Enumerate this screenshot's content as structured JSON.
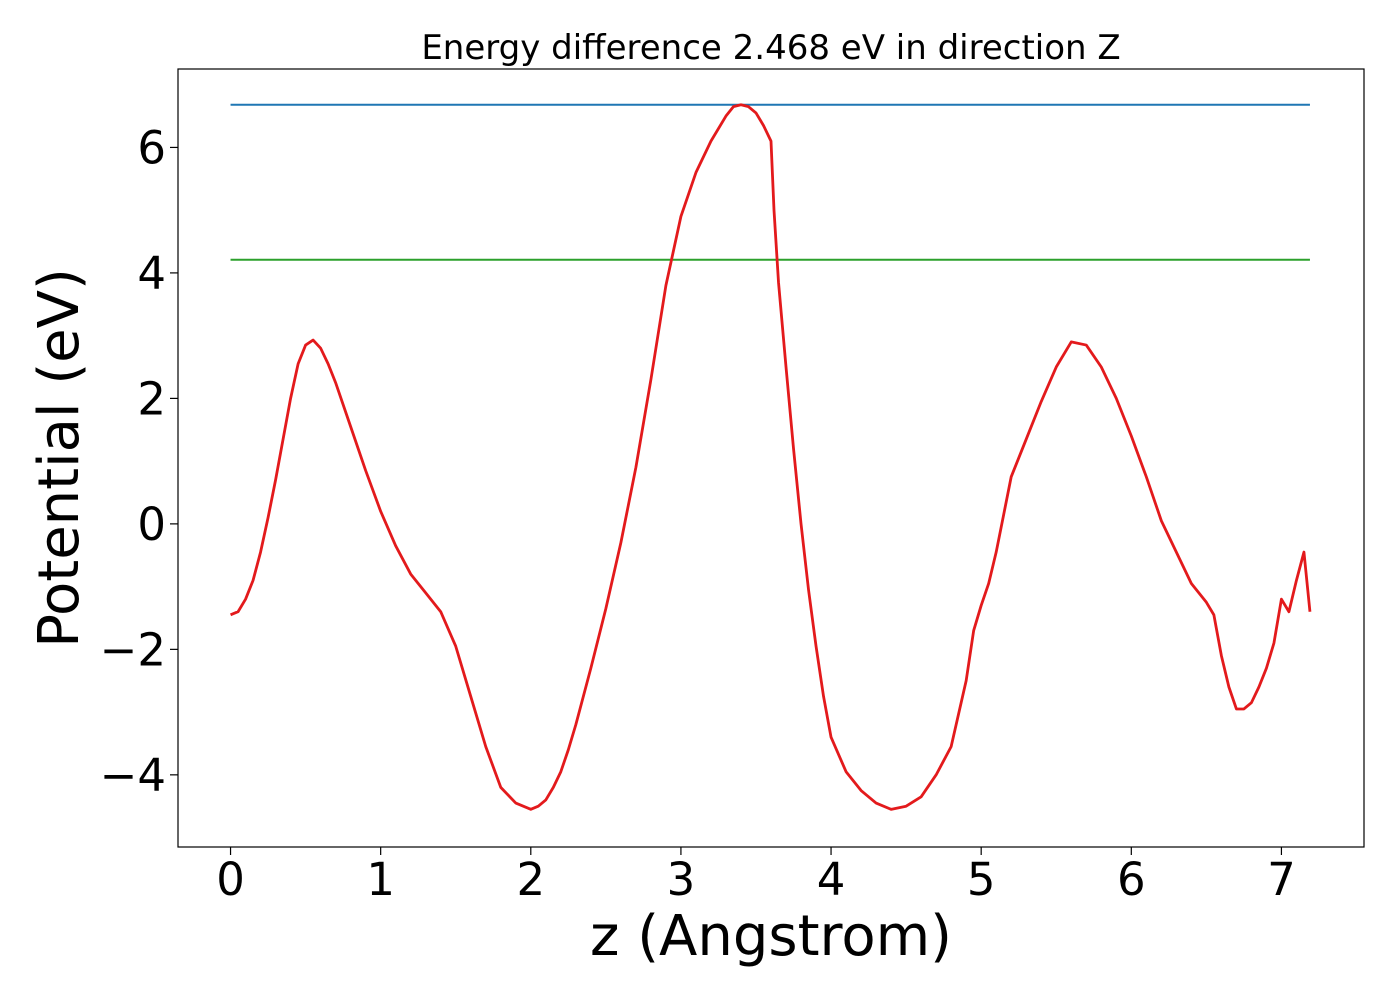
{
  "chart_data": {
    "type": "line",
    "title": "Energy difference 2.468 eV in direction Z",
    "xlabel": "z (Angstrom)",
    "ylabel": "Potential (eV)",
    "xlim": [
      -0.35,
      7.55
    ],
    "ylim": [
      -5.15,
      7.25
    ],
    "xticks": [
      0,
      1,
      2,
      3,
      4,
      5,
      6,
      7
    ],
    "xtick_labels": [
      "0",
      "1",
      "2",
      "3",
      "4",
      "5",
      "6",
      "7"
    ],
    "yticks": [
      6,
      4,
      2,
      0,
      -2,
      -4
    ],
    "ytick_labels": [
      "6",
      "4",
      "2",
      "0",
      "−2",
      "−4"
    ],
    "grid": false,
    "legend": "none",
    "series": [
      {
        "color": "#e31a1c",
        "x": [
          0.0,
          0.05,
          0.1,
          0.15,
          0.2,
          0.25,
          0.3,
          0.35,
          0.4,
          0.45,
          0.5,
          0.55,
          0.6,
          0.65,
          0.7,
          0.8,
          0.9,
          1.0,
          1.1,
          1.2,
          1.3,
          1.4,
          1.5,
          1.6,
          1.7,
          1.8,
          1.9,
          2.0,
          2.05,
          2.1,
          2.15,
          2.2,
          2.25,
          2.3,
          2.4,
          2.5,
          2.6,
          2.7,
          2.8,
          2.9,
          3.0,
          3.1,
          3.2,
          3.3,
          3.35,
          3.4,
          3.45,
          3.5,
          3.55,
          3.6,
          3.62,
          3.65,
          3.7,
          3.75,
          3.8,
          3.85,
          3.9,
          3.95,
          4.0,
          4.1,
          4.2,
          4.3,
          4.4,
          4.5,
          4.6,
          4.7,
          4.8,
          4.9,
          4.95,
          5.0,
          5.05,
          5.1,
          5.15,
          5.2,
          5.3,
          5.4,
          5.5,
          5.6,
          5.7,
          5.8,
          5.9,
          6.0,
          6.1,
          6.2,
          6.3,
          6.4,
          6.5,
          6.55,
          6.6,
          6.65,
          6.7,
          6.75,
          6.8,
          6.85,
          6.9,
          6.95,
          7.0,
          7.05,
          7.1,
          7.15,
          7.19
        ],
        "y": [
          -1.45,
          -1.4,
          -1.2,
          -0.9,
          -0.45,
          0.1,
          0.7,
          1.35,
          2.0,
          2.55,
          2.85,
          2.93,
          2.8,
          2.55,
          2.25,
          1.55,
          0.85,
          0.2,
          -0.35,
          -0.8,
          -1.1,
          -1.4,
          -1.95,
          -2.75,
          -3.55,
          -4.2,
          -4.45,
          -4.55,
          -4.5,
          -4.4,
          -4.2,
          -3.95,
          -3.6,
          -3.2,
          -2.3,
          -1.35,
          -0.3,
          0.9,
          2.3,
          3.8,
          4.9,
          5.6,
          6.1,
          6.5,
          6.65,
          6.68,
          6.65,
          6.55,
          6.35,
          6.1,
          5.0,
          3.85,
          2.5,
          1.2,
          0.0,
          -1.05,
          -1.95,
          -2.75,
          -3.4,
          -3.95,
          -4.25,
          -4.45,
          -4.55,
          -4.5,
          -4.35,
          -4.0,
          -3.55,
          -2.5,
          -1.7,
          -1.3,
          -0.95,
          -0.45,
          0.15,
          0.75,
          1.35,
          1.95,
          2.5,
          2.9,
          2.85,
          2.5,
          2.0,
          1.4,
          0.75,
          0.05,
          -0.45,
          -0.95,
          -1.25,
          -1.45,
          -2.1,
          -2.6,
          -2.95,
          -2.95,
          -2.85,
          -2.6,
          -2.3,
          -1.9,
          -1.2,
          -1.4,
          -0.9,
          -0.45,
          -1.4
        ]
      },
      {
        "color": "#1f77b4",
        "x": [
          0.0,
          7.19
        ],
        "y": [
          6.68,
          6.68
        ]
      },
      {
        "color": "#2ca02c",
        "x": [
          0.0,
          7.19
        ],
        "y": [
          4.21,
          4.21
        ]
      }
    ]
  }
}
